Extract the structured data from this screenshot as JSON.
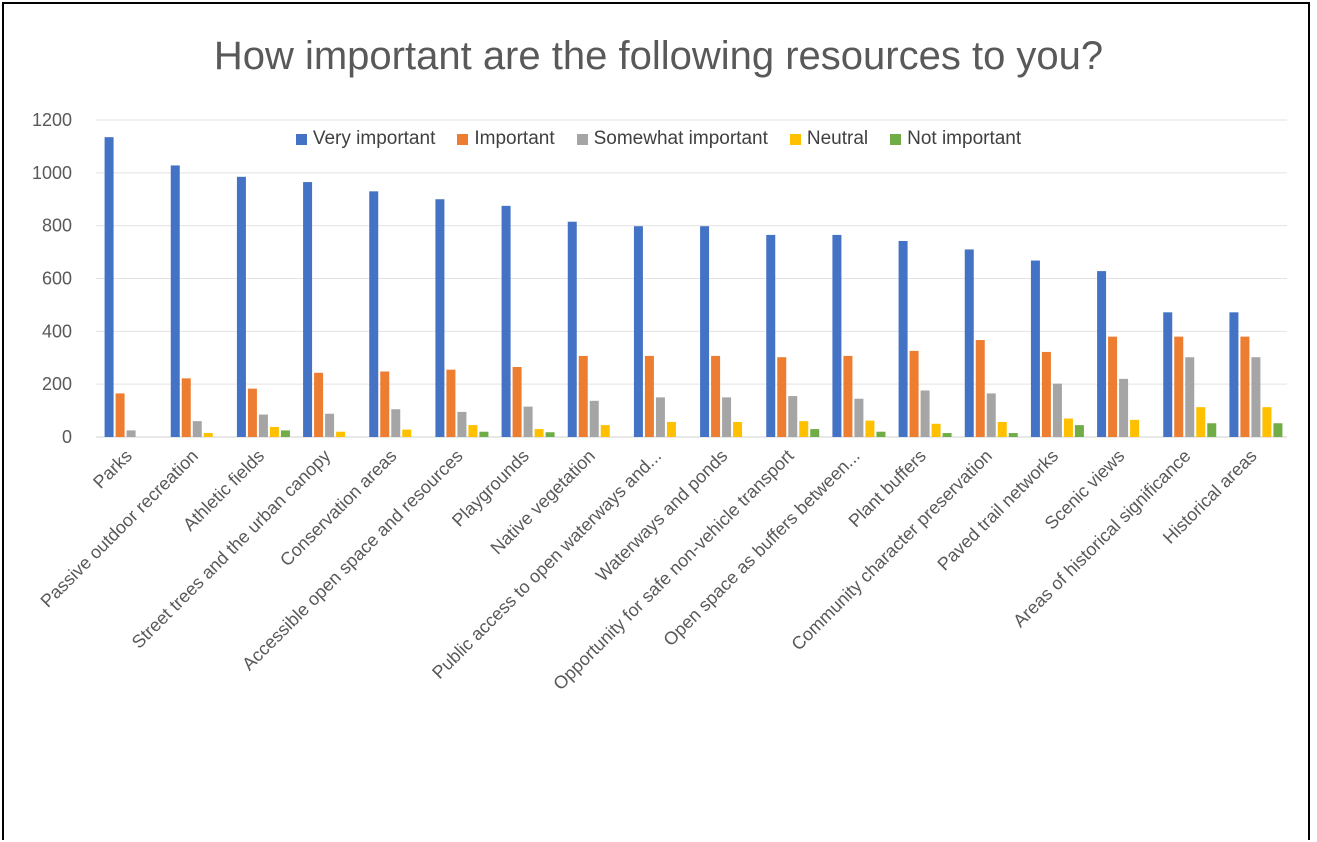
{
  "chart_data": {
    "type": "bar",
    "title": "How important are the following resources to you?",
    "xlabel": "",
    "ylabel": "",
    "ylim": [
      0,
      1200
    ],
    "yticks": [
      0,
      200,
      400,
      600,
      800,
      1000,
      1200
    ],
    "grid": true,
    "legend_position": "top",
    "categories": [
      "Parks",
      "Passive outdoor recreation",
      "Athletic fields",
      "Street trees and the urban canopy",
      "Conservation areas",
      "Accessible open space and resources",
      "Playgrounds",
      "Native vegetation",
      "Public access to open waterways and...",
      "Waterways and ponds",
      "Opportunity for safe non-vehicle transport",
      "Open space as buffers between...",
      "Plant buffers",
      "Community character preservation",
      "Paved trail networks",
      "Scenic views",
      "Areas of historical significance",
      "Historical areas"
    ],
    "series": [
      {
        "name": "Very important",
        "color": "#4472C4",
        "values": [
          1135,
          1028,
          985,
          965,
          930,
          900,
          875,
          815,
          798,
          798,
          765,
          765,
          742,
          710,
          668,
          628,
          472,
          472
        ]
      },
      {
        "name": "Important",
        "color": "#ED7D31",
        "values": [
          165,
          222,
          183,
          243,
          248,
          255,
          265,
          307,
          307,
          307,
          302,
          307,
          326,
          367,
          322,
          380,
          380,
          380
        ]
      },
      {
        "name": "Somewhat important",
        "color": "#A5A5A5",
        "values": [
          25,
          60,
          85,
          88,
          105,
          95,
          115,
          137,
          150,
          150,
          155,
          145,
          176,
          165,
          202,
          220,
          302,
          302
        ]
      },
      {
        "name": "Neutral",
        "color": "#FFC000",
        "values": [
          0,
          15,
          38,
          20,
          28,
          45,
          30,
          45,
          57,
          57,
          60,
          62,
          50,
          57,
          70,
          65,
          113,
          113
        ]
      },
      {
        "name": "Not important",
        "color": "#70AD47",
        "values": [
          0,
          0,
          25,
          0,
          0,
          20,
          18,
          0,
          0,
          0,
          30,
          20,
          15,
          15,
          45,
          0,
          52,
          52
        ]
      }
    ]
  }
}
